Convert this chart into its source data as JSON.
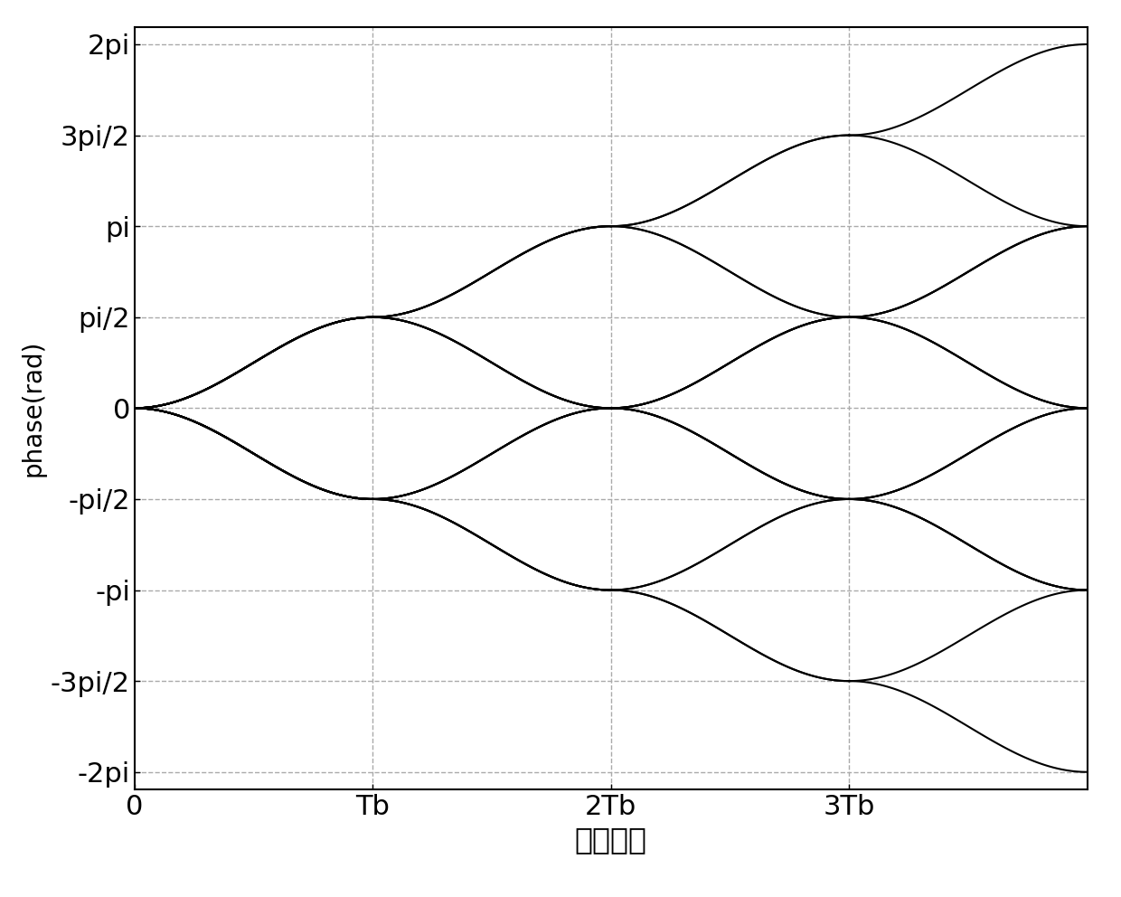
{
  "xlabel": "码元周期",
  "ylabel": "phase(rad)",
  "xlim": [
    0,
    4.0
  ],
  "ylim": [
    -6.5,
    6.8
  ],
  "yticks": [
    -6.283185,
    -4.712389,
    -3.141593,
    -1.570796,
    0,
    1.570796,
    3.141593,
    4.712389,
    6.283185
  ],
  "ytick_labels": [
    "-2pi",
    "-3pi/2",
    "-pi",
    "-pi/2",
    "0",
    "pi/2",
    "pi",
    "3pi/2",
    "2pi"
  ],
  "xticks": [
    0,
    1,
    2,
    3
  ],
  "xtick_labels": [
    "0",
    "Tb",
    "2Tb",
    "3Tb"
  ],
  "vlines": [
    1,
    2,
    3
  ],
  "grid_color": "#aaaaaa",
  "line_color": "#000000",
  "line_width": 1.5,
  "background_color": "#ffffff",
  "n_symbols": 4,
  "modulation_index": 0.5,
  "xlabel_fontsize": 24,
  "ylabel_fontsize": 20,
  "tick_fontsize": 22,
  "BT": 0.3
}
